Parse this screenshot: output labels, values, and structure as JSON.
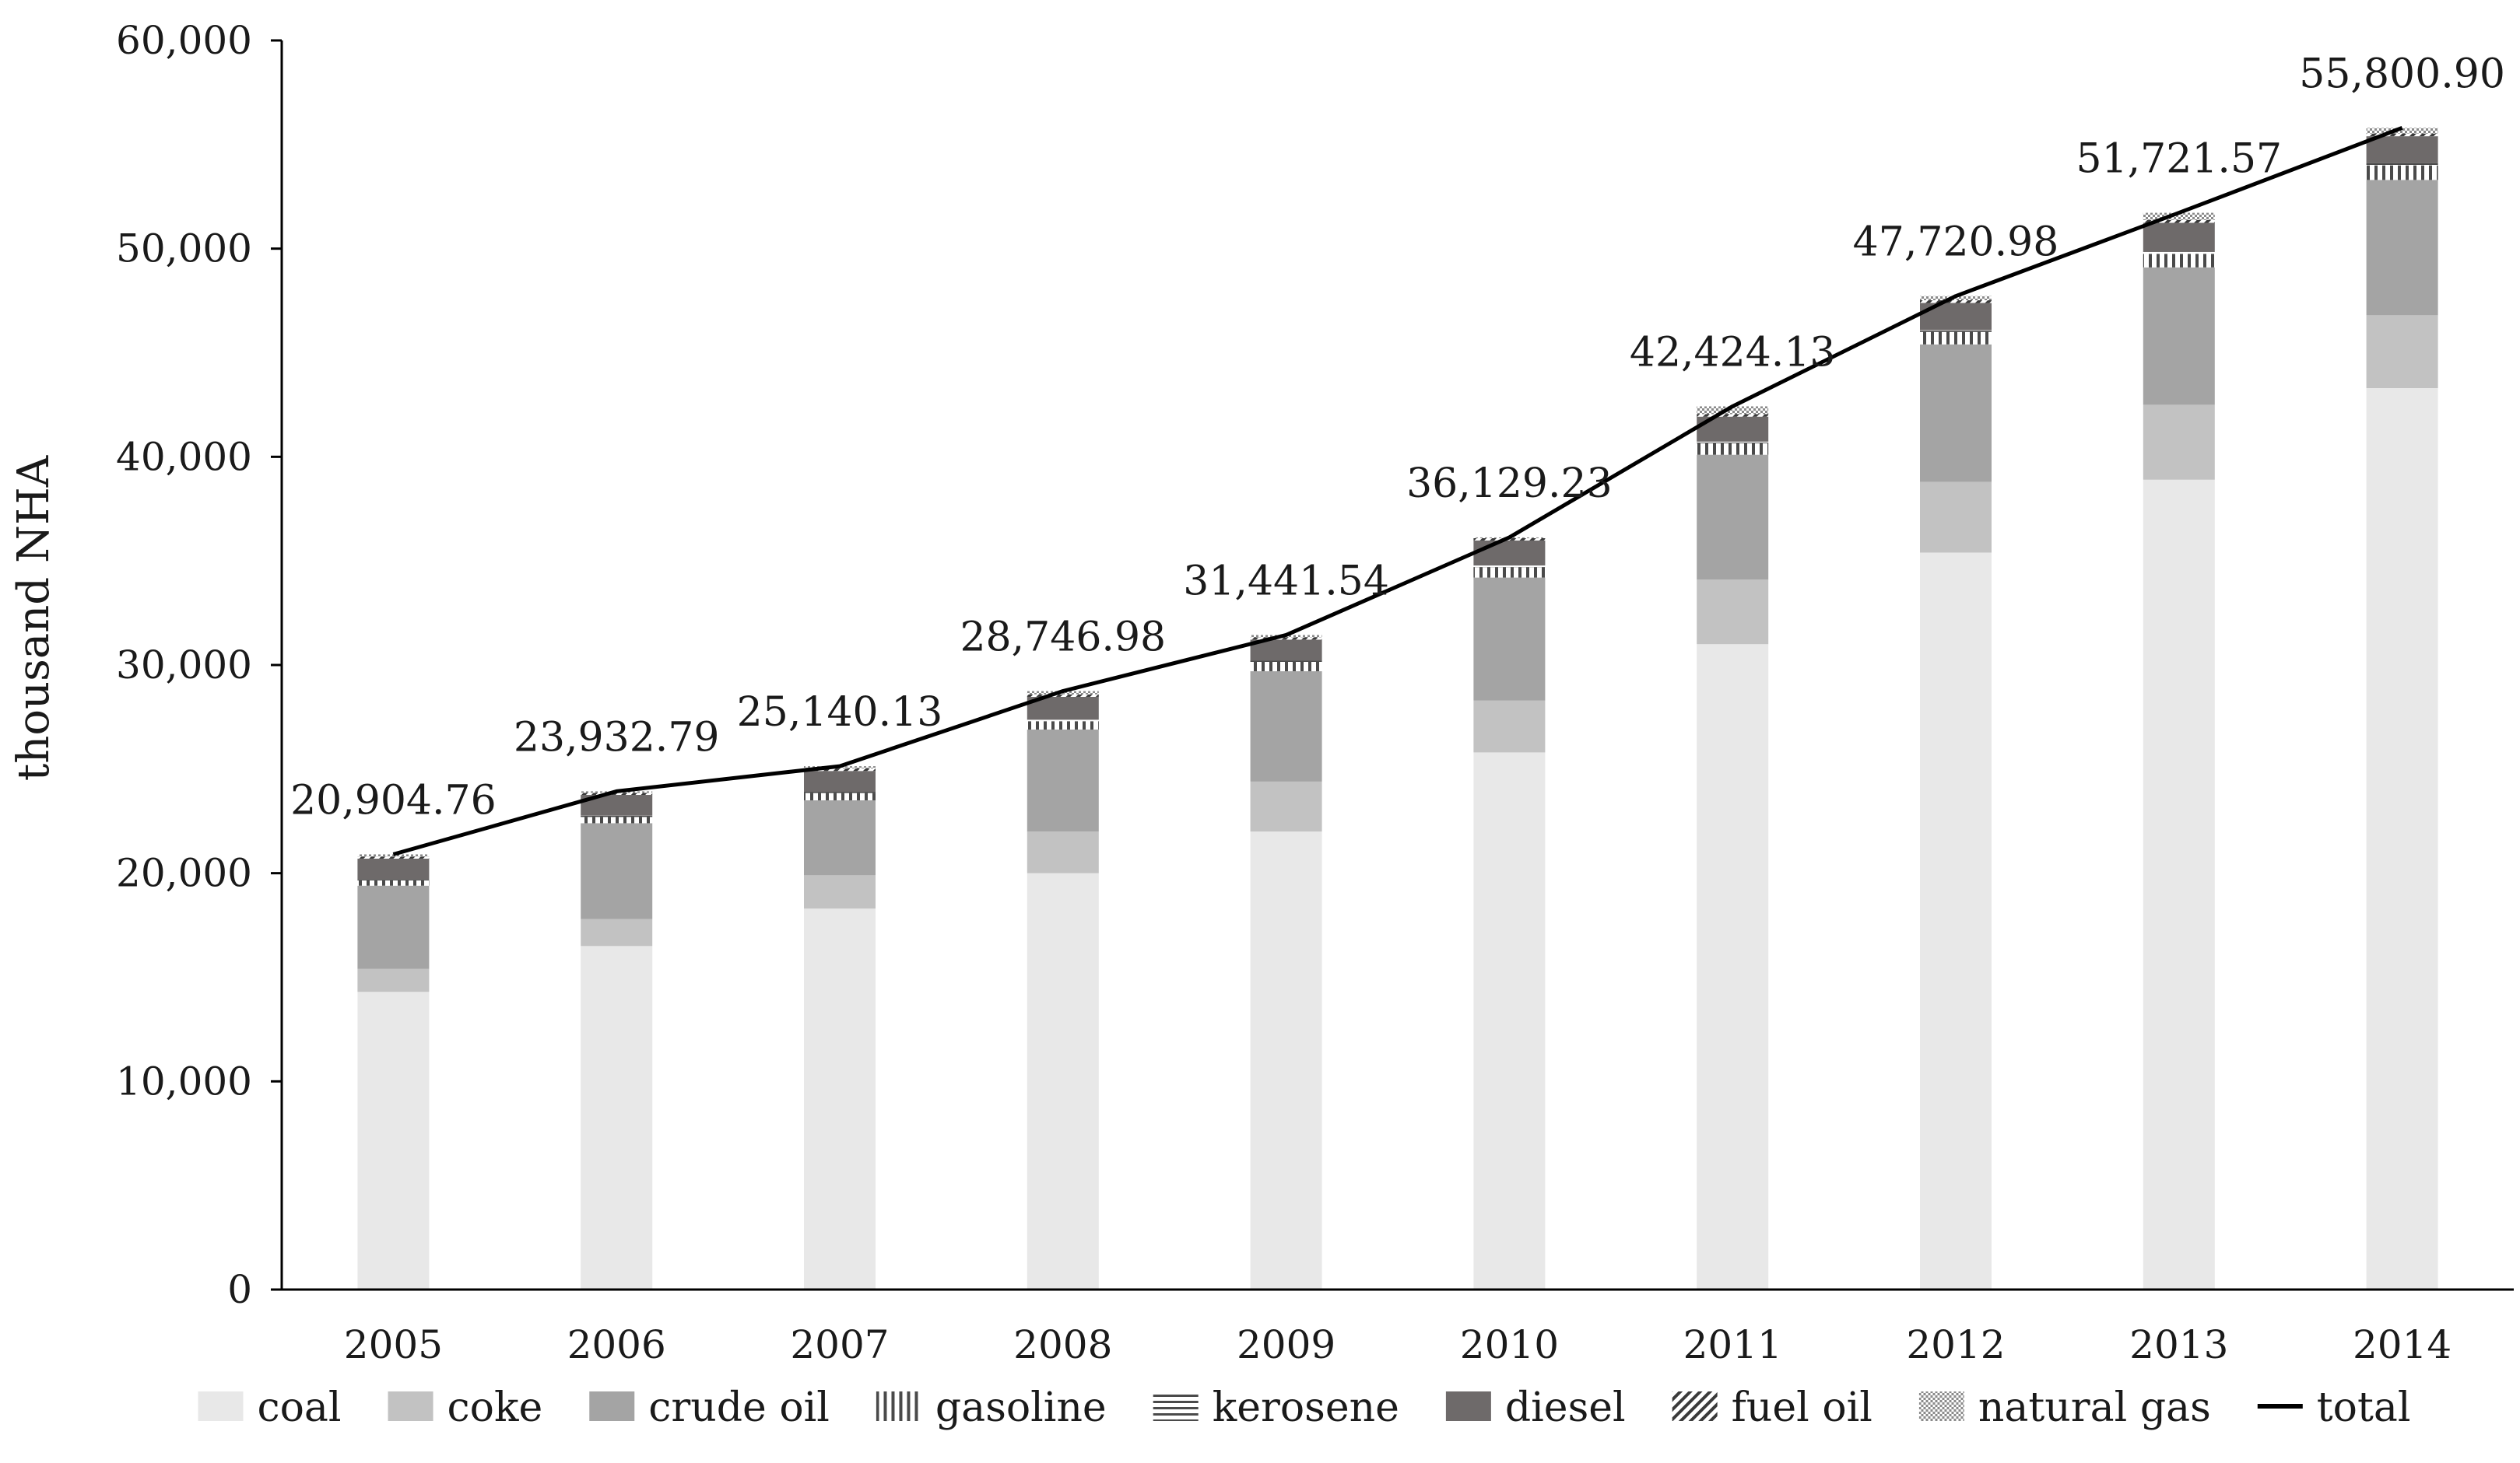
{
  "chart_data": {
    "type": "bar",
    "stacked": true,
    "title": "",
    "xlabel": "",
    "ylabel": "thousand NHA",
    "ylim": [
      0,
      60000
    ],
    "yticks": [
      0,
      10000,
      20000,
      30000,
      40000,
      50000,
      60000
    ],
    "ytick_labels": [
      "0",
      "10,000",
      "20,000",
      "30,000",
      "40,000",
      "50,000",
      "60,000"
    ],
    "categories": [
      "2005",
      "2006",
      "2007",
      "2008",
      "2009",
      "2010",
      "2011",
      "2012",
      "2013",
      "2014"
    ],
    "series": [
      {
        "name": "coal",
        "pattern": "solid",
        "color": "#e8e8e8",
        "values": [
          14300,
          16500,
          18300,
          20000,
          22000,
          25800,
          31000,
          35400,
          38900,
          43300
        ]
      },
      {
        "name": "coke",
        "pattern": "solid",
        "color": "#c2c2c2",
        "values": [
          1100,
          1300,
          1600,
          2000,
          2400,
          2500,
          3100,
          3400,
          3600,
          3500
        ]
      },
      {
        "name": "crude oil",
        "pattern": "solid",
        "color": "#a4a4a4",
        "values": [
          4000,
          4600,
          3600,
          4900,
          5300,
          5900,
          6000,
          6600,
          6600,
          6500
        ]
      },
      {
        "name": "gasoline",
        "pattern": "vertical",
        "color": "#777777",
        "values": [
          250,
          300,
          350,
          400,
          450,
          500,
          550,
          600,
          650,
          700
        ]
      },
      {
        "name": "kerosene",
        "pattern": "horizontal",
        "color": "#777777",
        "values": [
          50,
          60,
          60,
          70,
          70,
          80,
          80,
          90,
          90,
          100
        ]
      },
      {
        "name": "diesel",
        "pattern": "solid",
        "color": "#6e6a6a",
        "values": [
          1000,
          1000,
          1000,
          1100,
          1000,
          1200,
          1200,
          1300,
          1400,
          1300
        ]
      },
      {
        "name": "fuel oil",
        "pattern": "diagonal",
        "color": "#777777",
        "values": [
          100,
          100,
          120,
          120,
          110,
          110,
          120,
          130,
          130,
          130
        ]
      },
      {
        "name": "natural gas",
        "pattern": "dots",
        "color": "#777777",
        "values": [
          104.76,
          72.79,
          110.13,
          156.98,
          111.54,
          39.23,
          374.13,
          200.98,
          351.57,
          270.9
        ]
      }
    ],
    "total": {
      "name": "total",
      "color": "#000000",
      "values": [
        20904.76,
        23932.79,
        25140.13,
        28746.98,
        31441.54,
        36129.23,
        42424.13,
        47720.98,
        51721.57,
        55800.9
      ],
      "labels": [
        "20,904.76",
        "23,932.79",
        "25,140.13",
        "28,746.98",
        "31,441.54",
        "36,129.23",
        "42,424.13",
        "47,720.98",
        "51,721.57",
        "55,800.90"
      ]
    },
    "legend": [
      "coal",
      "coke",
      "crude oil",
      "gasoline",
      "kerosene",
      "diesel",
      "fuel oil",
      "natural gas",
      "total"
    ],
    "legend_position": "bottom",
    "grid": false
  }
}
